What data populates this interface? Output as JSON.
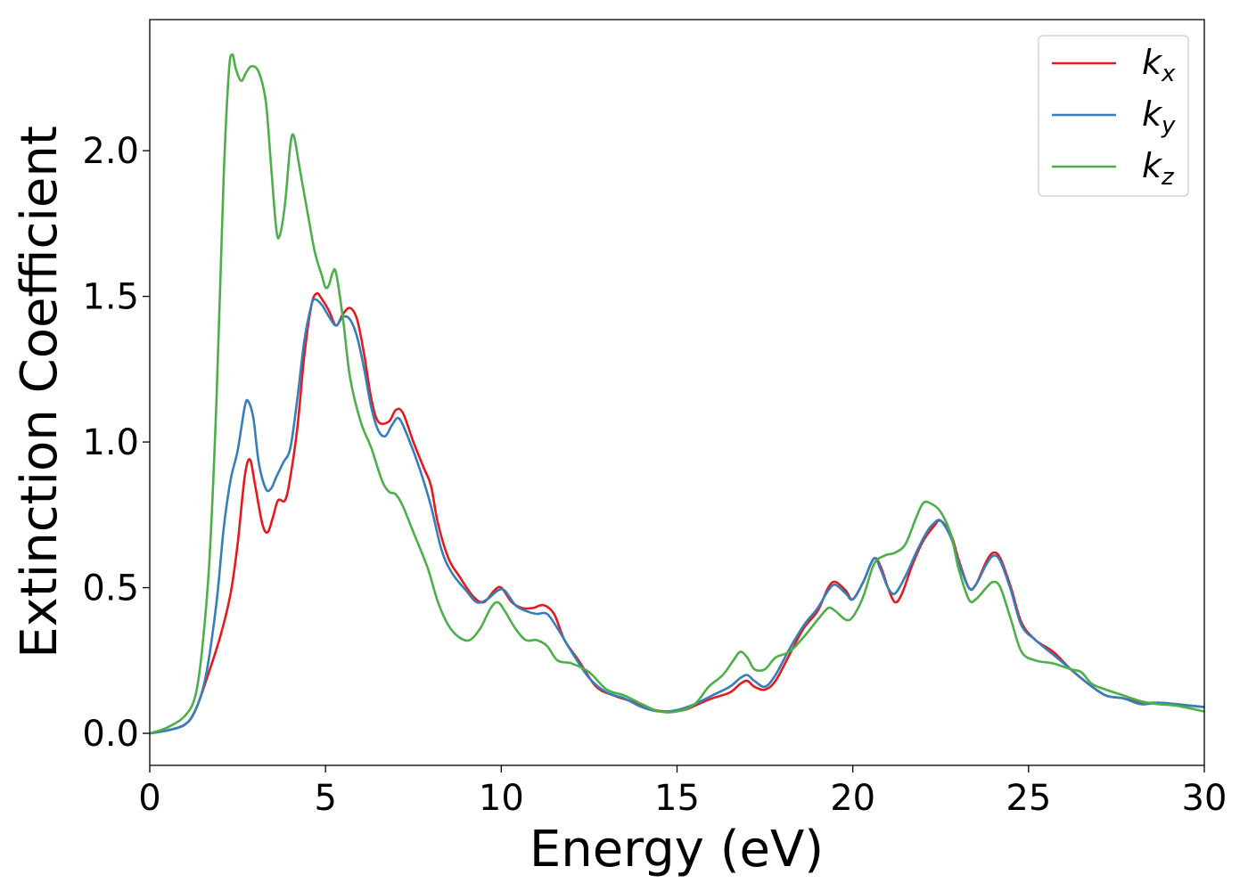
{
  "chart_data": {
    "type": "line",
    "xlabel": "Energy (eV)",
    "ylabel": "Extinction Coefficient",
    "xlim": [
      0,
      30
    ],
    "ylim": [
      -0.11,
      2.45
    ],
    "xticks": [
      0,
      5,
      10,
      15,
      20,
      25,
      30
    ],
    "xtick_labels": [
      "0",
      "5",
      "10",
      "15",
      "20",
      "25",
      "30"
    ],
    "yticks": [
      0.0,
      0.5,
      1.0,
      1.5,
      2.0
    ],
    "ytick_labels": [
      "0.0",
      "0.5",
      "1.0",
      "1.5",
      "2.0"
    ],
    "grid": false,
    "legend_position": "top-right",
    "series": [
      {
        "name": "k",
        "subscript": "x",
        "color": "#e41a1c",
        "points": [
          [
            0,
            0.0
          ],
          [
            0.5,
            0.01
          ],
          [
            1.0,
            0.03
          ],
          [
            1.3,
            0.08
          ],
          [
            1.6,
            0.18
          ],
          [
            2.0,
            0.33
          ],
          [
            2.3,
            0.48
          ],
          [
            2.5,
            0.65
          ],
          [
            2.7,
            0.88
          ],
          [
            2.85,
            0.94
          ],
          [
            3.0,
            0.85
          ],
          [
            3.2,
            0.72
          ],
          [
            3.35,
            0.69
          ],
          [
            3.5,
            0.74
          ],
          [
            3.65,
            0.8
          ],
          [
            3.85,
            0.8
          ],
          [
            4.0,
            0.88
          ],
          [
            4.2,
            1.05
          ],
          [
            4.4,
            1.3
          ],
          [
            4.6,
            1.47
          ],
          [
            4.75,
            1.51
          ],
          [
            4.9,
            1.49
          ],
          [
            5.1,
            1.45
          ],
          [
            5.3,
            1.4
          ],
          [
            5.5,
            1.44
          ],
          [
            5.7,
            1.46
          ],
          [
            5.9,
            1.42
          ],
          [
            6.1,
            1.3
          ],
          [
            6.3,
            1.15
          ],
          [
            6.5,
            1.07
          ],
          [
            6.8,
            1.07
          ],
          [
            7.0,
            1.11
          ],
          [
            7.2,
            1.1
          ],
          [
            7.5,
            1.0
          ],
          [
            7.8,
            0.91
          ],
          [
            8.0,
            0.85
          ],
          [
            8.2,
            0.72
          ],
          [
            8.5,
            0.6
          ],
          [
            8.8,
            0.54
          ],
          [
            9.2,
            0.47
          ],
          [
            9.5,
            0.45
          ],
          [
            9.8,
            0.49
          ],
          [
            10.0,
            0.5
          ],
          [
            10.3,
            0.45
          ],
          [
            10.6,
            0.43
          ],
          [
            10.9,
            0.43
          ],
          [
            11.2,
            0.44
          ],
          [
            11.5,
            0.41
          ],
          [
            11.8,
            0.32
          ],
          [
            12.2,
            0.25
          ],
          [
            12.7,
            0.16
          ],
          [
            13.2,
            0.13
          ],
          [
            13.7,
            0.11
          ],
          [
            14.2,
            0.085
          ],
          [
            14.7,
            0.075
          ],
          [
            15.2,
            0.08
          ],
          [
            15.6,
            0.1
          ],
          [
            16.0,
            0.12
          ],
          [
            16.5,
            0.14
          ],
          [
            16.8,
            0.17
          ],
          [
            17.0,
            0.18
          ],
          [
            17.2,
            0.16
          ],
          [
            17.5,
            0.15
          ],
          [
            17.8,
            0.18
          ],
          [
            18.2,
            0.27
          ],
          [
            18.6,
            0.36
          ],
          [
            19.0,
            0.42
          ],
          [
            19.3,
            0.5
          ],
          [
            19.5,
            0.52
          ],
          [
            19.8,
            0.49
          ],
          [
            20.0,
            0.46
          ],
          [
            20.3,
            0.52
          ],
          [
            20.6,
            0.6
          ],
          [
            20.8,
            0.57
          ],
          [
            21.0,
            0.5
          ],
          [
            21.2,
            0.45
          ],
          [
            21.4,
            0.48
          ],
          [
            21.7,
            0.58
          ],
          [
            22.0,
            0.66
          ],
          [
            22.3,
            0.71
          ],
          [
            22.5,
            0.73
          ],
          [
            22.8,
            0.68
          ],
          [
            23.0,
            0.6
          ],
          [
            23.3,
            0.5
          ],
          [
            23.5,
            0.51
          ],
          [
            23.8,
            0.59
          ],
          [
            24.0,
            0.62
          ],
          [
            24.2,
            0.6
          ],
          [
            24.5,
            0.5
          ],
          [
            24.8,
            0.38
          ],
          [
            25.2,
            0.32
          ],
          [
            25.7,
            0.28
          ],
          [
            26.2,
            0.22
          ],
          [
            26.7,
            0.17
          ],
          [
            27.2,
            0.13
          ],
          [
            27.7,
            0.12
          ],
          [
            28.2,
            0.105
          ],
          [
            28.7,
            0.105
          ],
          [
            29.2,
            0.1
          ],
          [
            30.0,
            0.09
          ]
        ]
      },
      {
        "name": "k",
        "subscript": "y",
        "color": "#377eb8",
        "points": [
          [
            0,
            0.0
          ],
          [
            0.5,
            0.01
          ],
          [
            1.0,
            0.03
          ],
          [
            1.3,
            0.08
          ],
          [
            1.6,
            0.2
          ],
          [
            1.9,
            0.45
          ],
          [
            2.1,
            0.7
          ],
          [
            2.3,
            0.87
          ],
          [
            2.5,
            0.97
          ],
          [
            2.7,
            1.12
          ],
          [
            2.8,
            1.14
          ],
          [
            2.95,
            1.08
          ],
          [
            3.1,
            0.93
          ],
          [
            3.3,
            0.84
          ],
          [
            3.45,
            0.84
          ],
          [
            3.6,
            0.88
          ],
          [
            3.8,
            0.93
          ],
          [
            4.0,
            0.98
          ],
          [
            4.2,
            1.15
          ],
          [
            4.4,
            1.35
          ],
          [
            4.6,
            1.47
          ],
          [
            4.7,
            1.49
          ],
          [
            4.9,
            1.47
          ],
          [
            5.1,
            1.43
          ],
          [
            5.3,
            1.4
          ],
          [
            5.5,
            1.43
          ],
          [
            5.7,
            1.42
          ],
          [
            5.9,
            1.36
          ],
          [
            6.1,
            1.25
          ],
          [
            6.3,
            1.12
          ],
          [
            6.5,
            1.04
          ],
          [
            6.7,
            1.02
          ],
          [
            6.9,
            1.06
          ],
          [
            7.1,
            1.08
          ],
          [
            7.4,
            1.0
          ],
          [
            7.7,
            0.9
          ],
          [
            8.0,
            0.78
          ],
          [
            8.3,
            0.63
          ],
          [
            8.6,
            0.55
          ],
          [
            9.0,
            0.49
          ],
          [
            9.3,
            0.45
          ],
          [
            9.6,
            0.46
          ],
          [
            9.9,
            0.49
          ],
          [
            10.1,
            0.49
          ],
          [
            10.4,
            0.44
          ],
          [
            10.7,
            0.42
          ],
          [
            11.0,
            0.41
          ],
          [
            11.3,
            0.41
          ],
          [
            11.6,
            0.36
          ],
          [
            12.0,
            0.28
          ],
          [
            12.5,
            0.19
          ],
          [
            13.0,
            0.14
          ],
          [
            13.5,
            0.12
          ],
          [
            14.0,
            0.09
          ],
          [
            14.5,
            0.075
          ],
          [
            15.0,
            0.08
          ],
          [
            15.5,
            0.1
          ],
          [
            16.0,
            0.13
          ],
          [
            16.5,
            0.16
          ],
          [
            16.8,
            0.19
          ],
          [
            17.0,
            0.2
          ],
          [
            17.2,
            0.18
          ],
          [
            17.5,
            0.16
          ],
          [
            17.8,
            0.2
          ],
          [
            18.2,
            0.29
          ],
          [
            18.6,
            0.37
          ],
          [
            19.0,
            0.43
          ],
          [
            19.3,
            0.49
          ],
          [
            19.5,
            0.51
          ],
          [
            19.8,
            0.48
          ],
          [
            20.0,
            0.46
          ],
          [
            20.3,
            0.52
          ],
          [
            20.6,
            0.6
          ],
          [
            20.8,
            0.56
          ],
          [
            21.0,
            0.5
          ],
          [
            21.2,
            0.48
          ],
          [
            21.5,
            0.54
          ],
          [
            21.8,
            0.62
          ],
          [
            22.1,
            0.69
          ],
          [
            22.3,
            0.72
          ],
          [
            22.5,
            0.73
          ],
          [
            22.8,
            0.67
          ],
          [
            23.0,
            0.59
          ],
          [
            23.3,
            0.5
          ],
          [
            23.5,
            0.51
          ],
          [
            23.8,
            0.58
          ],
          [
            24.0,
            0.61
          ],
          [
            24.2,
            0.59
          ],
          [
            24.5,
            0.49
          ],
          [
            24.8,
            0.37
          ],
          [
            25.2,
            0.32
          ],
          [
            25.7,
            0.27
          ],
          [
            26.2,
            0.22
          ],
          [
            26.7,
            0.17
          ],
          [
            27.2,
            0.13
          ],
          [
            27.7,
            0.12
          ],
          [
            28.2,
            0.1
          ],
          [
            28.7,
            0.105
          ],
          [
            29.2,
            0.1
          ],
          [
            30.0,
            0.09
          ]
        ]
      },
      {
        "name": "k",
        "subscript": "z",
        "color": "#4daf4a",
        "points": [
          [
            0,
            0.0
          ],
          [
            0.5,
            0.02
          ],
          [
            1.0,
            0.06
          ],
          [
            1.3,
            0.13
          ],
          [
            1.5,
            0.3
          ],
          [
            1.7,
            0.6
          ],
          [
            1.9,
            1.15
          ],
          [
            2.1,
            1.9
          ],
          [
            2.25,
            2.27
          ],
          [
            2.35,
            2.33
          ],
          [
            2.45,
            2.28
          ],
          [
            2.6,
            2.24
          ],
          [
            2.75,
            2.27
          ],
          [
            2.9,
            2.29
          ],
          [
            3.1,
            2.27
          ],
          [
            3.3,
            2.17
          ],
          [
            3.45,
            1.95
          ],
          [
            3.6,
            1.73
          ],
          [
            3.7,
            1.71
          ],
          [
            3.85,
            1.82
          ],
          [
            4.0,
            2.02
          ],
          [
            4.1,
            2.05
          ],
          [
            4.25,
            1.95
          ],
          [
            4.5,
            1.78
          ],
          [
            4.7,
            1.65
          ],
          [
            4.9,
            1.57
          ],
          [
            5.0,
            1.53
          ],
          [
            5.1,
            1.54
          ],
          [
            5.2,
            1.58
          ],
          [
            5.3,
            1.58
          ],
          [
            5.5,
            1.42
          ],
          [
            5.7,
            1.22
          ],
          [
            6.0,
            1.07
          ],
          [
            6.3,
            0.98
          ],
          [
            6.6,
            0.87
          ],
          [
            6.8,
            0.83
          ],
          [
            7.0,
            0.82
          ],
          [
            7.2,
            0.78
          ],
          [
            7.5,
            0.69
          ],
          [
            7.9,
            0.57
          ],
          [
            8.2,
            0.45
          ],
          [
            8.5,
            0.37
          ],
          [
            8.8,
            0.33
          ],
          [
            9.1,
            0.32
          ],
          [
            9.4,
            0.36
          ],
          [
            9.7,
            0.43
          ],
          [
            9.9,
            0.45
          ],
          [
            10.1,
            0.42
          ],
          [
            10.4,
            0.36
          ],
          [
            10.7,
            0.32
          ],
          [
            11.0,
            0.32
          ],
          [
            11.3,
            0.3
          ],
          [
            11.6,
            0.25
          ],
          [
            12.0,
            0.24
          ],
          [
            12.5,
            0.21
          ],
          [
            13.0,
            0.15
          ],
          [
            13.5,
            0.13
          ],
          [
            14.0,
            0.1
          ],
          [
            14.5,
            0.075
          ],
          [
            15.0,
            0.075
          ],
          [
            15.5,
            0.1
          ],
          [
            15.9,
            0.16
          ],
          [
            16.3,
            0.2
          ],
          [
            16.6,
            0.25
          ],
          [
            16.8,
            0.28
          ],
          [
            17.0,
            0.26
          ],
          [
            17.2,
            0.22
          ],
          [
            17.5,
            0.22
          ],
          [
            17.8,
            0.26
          ],
          [
            18.2,
            0.28
          ],
          [
            18.6,
            0.33
          ],
          [
            19.0,
            0.39
          ],
          [
            19.3,
            0.43
          ],
          [
            19.5,
            0.42
          ],
          [
            19.8,
            0.39
          ],
          [
            20.0,
            0.4
          ],
          [
            20.3,
            0.47
          ],
          [
            20.6,
            0.58
          ],
          [
            20.9,
            0.61
          ],
          [
            21.2,
            0.62
          ],
          [
            21.5,
            0.65
          ],
          [
            21.8,
            0.74
          ],
          [
            22.0,
            0.79
          ],
          [
            22.2,
            0.79
          ],
          [
            22.5,
            0.76
          ],
          [
            22.8,
            0.68
          ],
          [
            23.0,
            0.57
          ],
          [
            23.3,
            0.46
          ],
          [
            23.5,
            0.46
          ],
          [
            23.8,
            0.5
          ],
          [
            24.0,
            0.52
          ],
          [
            24.2,
            0.5
          ],
          [
            24.5,
            0.39
          ],
          [
            24.8,
            0.28
          ],
          [
            25.2,
            0.25
          ],
          [
            25.7,
            0.24
          ],
          [
            26.2,
            0.22
          ],
          [
            26.5,
            0.21
          ],
          [
            26.8,
            0.17
          ],
          [
            27.2,
            0.15
          ],
          [
            27.7,
            0.13
          ],
          [
            28.2,
            0.11
          ],
          [
            28.7,
            0.1
          ],
          [
            29.2,
            0.095
          ],
          [
            30.0,
            0.075
          ]
        ]
      }
    ]
  }
}
